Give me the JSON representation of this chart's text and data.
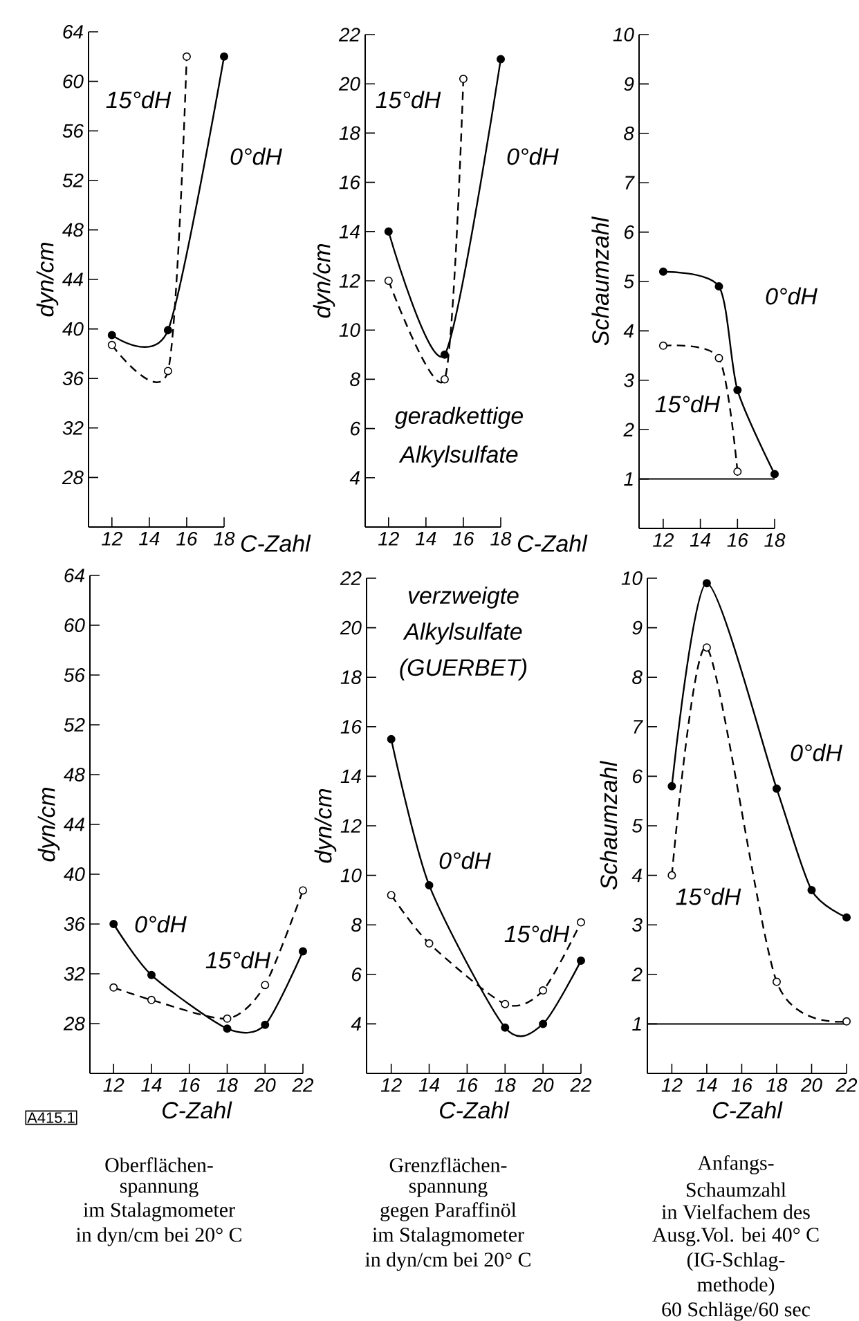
{
  "chart_data": [
    {
      "type": "line",
      "xlabel": "C-Zahl",
      "ylabel": "dyn/cm",
      "xlim": [
        10.75,
        18
      ],
      "ylim": [
        24,
        64
      ],
      "xticks": [
        12,
        14,
        16,
        18
      ],
      "yticks": [
        28,
        32,
        36,
        40,
        44,
        48,
        52,
        56,
        60,
        64
      ],
      "marker": "circle",
      "series": [
        {
          "name": "0°dH",
          "color": "#000000",
          "line_style": "solid",
          "x": [
            12,
            15,
            18
          ],
          "values": [
            39.5,
            39.9,
            62
          ]
        },
        {
          "name": "15°dH",
          "color": "#000000",
          "line_style": "dashed",
          "x": [
            12,
            15,
            16
          ],
          "values": [
            38.7,
            36.6,
            62
          ]
        }
      ]
    },
    {
      "type": "line",
      "xlabel": "C-Zahl",
      "ylabel": "dyn/cm",
      "xlim": [
        10.75,
        18
      ],
      "ylim": [
        2,
        22
      ],
      "xticks": [
        12,
        14,
        16,
        18
      ],
      "yticks": [
        4,
        6,
        8,
        10,
        12,
        14,
        16,
        18,
        20,
        22
      ],
      "marker": "circle",
      "annotations": [
        "geradkettige",
        "Alkylsulfate"
      ],
      "series": [
        {
          "name": "0°dH",
          "color": "#000000",
          "line_style": "solid",
          "x": [
            12,
            15,
            18
          ],
          "values": [
            14,
            9,
            21
          ]
        },
        {
          "name": "15°dH",
          "color": "#000000",
          "line_style": "dashed",
          "x": [
            12,
            15,
            16
          ],
          "values": [
            12,
            8,
            20.2
          ]
        }
      ]
    },
    {
      "type": "line",
      "ylabel": "Schaumzahl",
      "xlim": [
        10.7,
        18
      ],
      "ylim": [
        0,
        10
      ],
      "xticks": [
        12,
        14,
        16,
        18
      ],
      "yticks": [
        1,
        2,
        3,
        4,
        5,
        6,
        7,
        8,
        9,
        10
      ],
      "marker": "circle",
      "ref_lines": [
        {
          "axis": "y",
          "value": 1
        }
      ],
      "series": [
        {
          "name": "0°dH",
          "color": "#000000",
          "line_style": "solid",
          "x": [
            12,
            15,
            16,
            18
          ],
          "values": [
            5.2,
            4.9,
            2.8,
            1.1
          ]
        },
        {
          "name": "15°dH",
          "color": "#000000",
          "line_style": "dashed",
          "x": [
            12,
            15,
            16
          ],
          "values": [
            3.7,
            3.45,
            1.15
          ]
        }
      ]
    },
    {
      "type": "line",
      "xlabel": "C-Zahl",
      "ylabel": "dyn/cm",
      "xlim": [
        10.75,
        22
      ],
      "ylim": [
        24,
        64
      ],
      "xticks": [
        12,
        14,
        16,
        18,
        20,
        22
      ],
      "yticks": [
        28,
        32,
        36,
        40,
        44,
        48,
        52,
        56,
        60,
        64
      ],
      "marker": "circle",
      "annotations": [
        "A415.1",
        "Oberflächen-",
        "spannung",
        "im Stalagmometer",
        "in dyn/cm bei 20° C"
      ],
      "series": [
        {
          "name": "0°dH",
          "color": "#000000",
          "line_style": "solid",
          "x": [
            12,
            14,
            18,
            20,
            22
          ],
          "values": [
            36,
            31.9,
            27.6,
            27.9,
            33.8
          ]
        },
        {
          "name": "15°dH",
          "color": "#000000",
          "line_style": "dashed",
          "x": [
            12,
            14,
            18,
            20,
            22
          ],
          "values": [
            30.9,
            29.9,
            28.4,
            31.1,
            38.7
          ]
        }
      ]
    },
    {
      "type": "line",
      "xlabel": "C-Zahl",
      "ylabel": "dyn/cm",
      "xlim": [
        10.7,
        22
      ],
      "ylim": [
        2,
        22
      ],
      "xticks": [
        12,
        14,
        16,
        18,
        20,
        22
      ],
      "yticks": [
        4,
        6,
        8,
        10,
        12,
        14,
        16,
        18,
        20,
        22
      ],
      "marker": "circle",
      "annotations": [
        "verzweigte",
        "Alkylsulfate",
        "(GUERBET)",
        "Grenzflächen-",
        "spannung",
        "gegen Paraffinöl",
        "im Stalagmometer",
        "in dyn/cm bei 20° C"
      ],
      "series": [
        {
          "name": "0°dH",
          "color": "#000000",
          "line_style": "solid",
          "x": [
            12,
            14,
            18,
            20,
            22
          ],
          "values": [
            15.5,
            9.6,
            3.85,
            4.0,
            6.55
          ]
        },
        {
          "name": "15°dH",
          "color": "#000000",
          "line_style": "dashed",
          "x": [
            12,
            14,
            18,
            20,
            22
          ],
          "values": [
            9.2,
            7.25,
            4.8,
            5.35,
            8.1
          ]
        }
      ]
    },
    {
      "type": "line",
      "xlabel": "C-Zahl",
      "ylabel": "Schaumzahl",
      "xlim": [
        10.6,
        22
      ],
      "ylim": [
        0,
        10
      ],
      "xticks": [
        12,
        14,
        16,
        18,
        20,
        22
      ],
      "yticks": [
        1,
        2,
        3,
        4,
        5,
        6,
        7,
        8,
        9,
        10
      ],
      "marker": "circle",
      "ref_lines": [
        {
          "axis": "y",
          "value": 1
        }
      ],
      "annotations": [
        "Anfangs-",
        "Schaumzahl",
        "in Vielfachem des",
        "Ausg.Vol. bei 40° C",
        "(IG-Schlag-",
        "methode)",
        "60 Schläge/60 sec"
      ],
      "series": [
        {
          "name": "0°dH",
          "color": "#000000",
          "line_style": "solid",
          "x": [
            12,
            14,
            18,
            20,
            22
          ],
          "values": [
            5.8,
            9.9,
            5.75,
            3.7,
            3.15
          ]
        },
        {
          "name": "15°dH",
          "color": "#000000",
          "line_style": "dashed",
          "x": [
            12,
            14,
            18,
            22
          ],
          "values": [
            4.0,
            8.6,
            1.85,
            1.05
          ]
        }
      ]
    }
  ]
}
